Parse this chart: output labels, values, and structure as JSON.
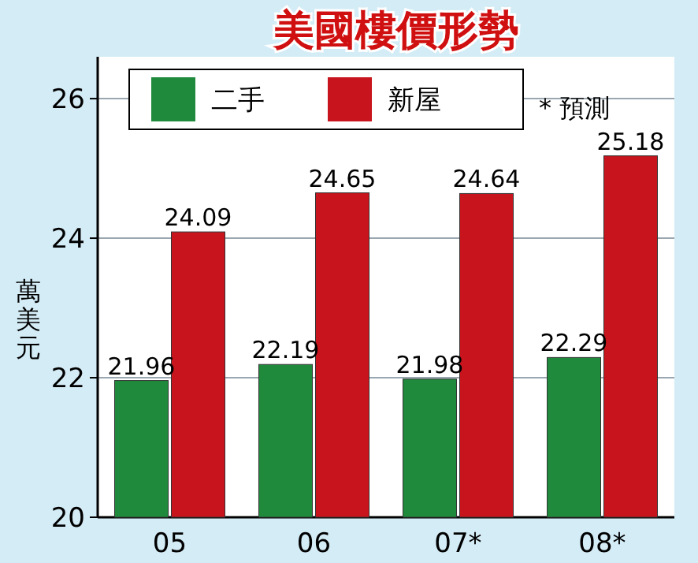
{
  "chart_data": {
    "type": "bar",
    "title": "美國樓價形勢",
    "ylabel": "萬美元",
    "categories": [
      "05",
      "06",
      "07*",
      "08*"
    ],
    "series": [
      {
        "name": "二手",
        "color": "#1f8a3c",
        "values": [
          21.96,
          22.19,
          21.98,
          22.29
        ]
      },
      {
        "name": "新屋",
        "color": "#c8141c",
        "values": [
          24.09,
          24.65,
          24.64,
          25.18
        ]
      }
    ],
    "ylim": [
      20,
      26.6
    ],
    "yticks": [
      20,
      22,
      24,
      26
    ],
    "grid": "y",
    "legend": "top",
    "data_labels": true,
    "annotations": [
      "* 預測"
    ]
  }
}
